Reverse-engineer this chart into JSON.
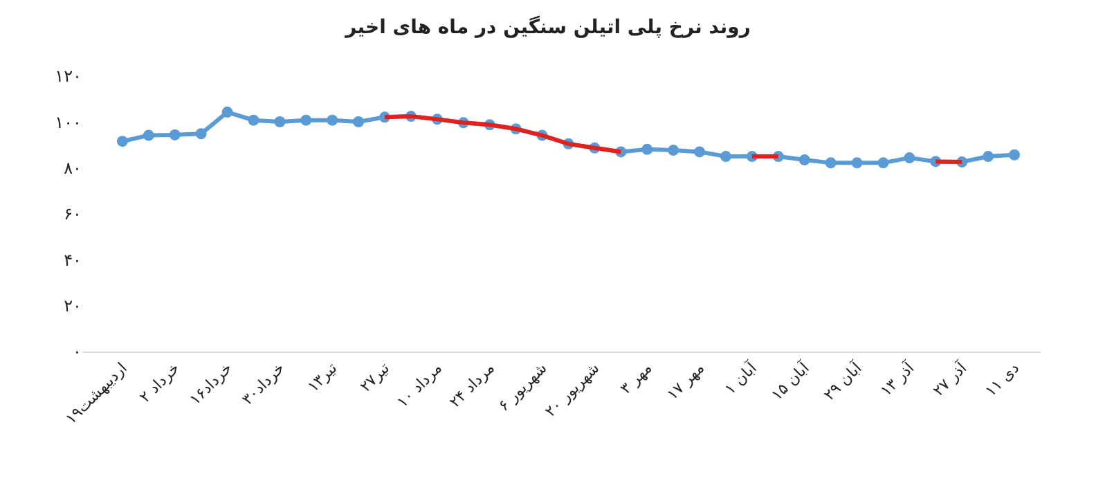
{
  "chart_data": {
    "type": "line",
    "title": "روند نرخ پلی اتیلن سنگین در ماه های اخیر",
    "categories": [
      "۱۹اردیبهشت",
      null,
      "۲ خرداد",
      null,
      "۱۶خرداد",
      null,
      "۳۰خرداد",
      null,
      "۱۳تیر",
      null,
      "۲۷تیر",
      null,
      "۱۰ مرداد",
      null,
      "۲۴ مرداد",
      null,
      "شهریور ۶",
      null,
      "۲۰ شهریور",
      null,
      "۳ مهر",
      null,
      "۱۷ مهر",
      null,
      "۱ آبان",
      null,
      "۱۵ آبان",
      null,
      "۲۹ آبان",
      null,
      "۱۳ آذر",
      null,
      "۲۷ آذر",
      null,
      "۱۱ دی"
    ],
    "series": [
      {
        "color": "#5b9bd5",
        "marker": "circle",
        "values": [
          91.6,
          94.2,
          94.4,
          94.9,
          104.3,
          100.8,
          100.1,
          100.8,
          100.8,
          100.1,
          102.1,
          102.5,
          101.2,
          99.7,
          98.8,
          97,
          94.2,
          90.5,
          88.7,
          87,
          88.1,
          87.7,
          87,
          85,
          85,
          85,
          83.5,
          82.2,
          82.2,
          82.2,
          84.4,
          82.8,
          82.6,
          85,
          85.7
        ]
      },
      {
        "color": "#e3211c",
        "marker": "none",
        "values": [
          null,
          null,
          null,
          null,
          null,
          null,
          null,
          null,
          null,
          null,
          102.1,
          102.5,
          101.2,
          99.7,
          98.8,
          97,
          94.2,
          90.5,
          88.7,
          87,
          null,
          null,
          null,
          null,
          85,
          85,
          null,
          null,
          null,
          null,
          null,
          82.8,
          82.6,
          null,
          null
        ]
      }
    ],
    "ylim": [
      0,
      120
    ],
    "yticks": [
      {
        "value": 0,
        "label": "۰"
      },
      {
        "value": 20,
        "label": "۲۰"
      },
      {
        "value": 40,
        "label": "۴۰"
      },
      {
        "value": 60,
        "label": "۶۰"
      },
      {
        "value": 80,
        "label": "۸۰"
      },
      {
        "value": 100,
        "label": "۱۰۰"
      },
      {
        "value": 120,
        "label": "۱۲۰"
      }
    ],
    "grid": false
  }
}
